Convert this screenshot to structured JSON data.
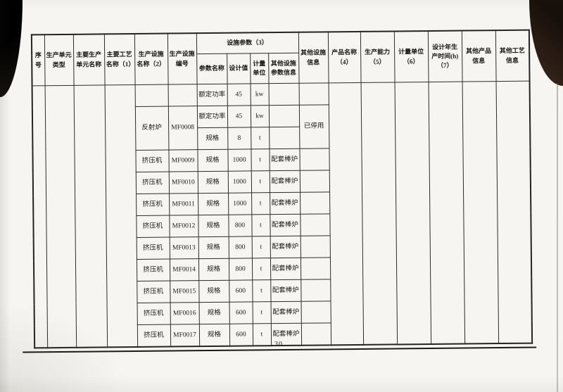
{
  "page": {
    "number": "30"
  },
  "table": {
    "headers": {
      "seq": "序号",
      "unit_type": "生产单元类型",
      "main_unit_name": "主要生产单元名称",
      "main_process_name": "主要工艺名称（1）",
      "facility_name": "生产设施名称（2）",
      "facility_code": "生产设施编号",
      "facility_params": "设施参数（3）",
      "param_name": "参数名称",
      "design_value": "设计值",
      "unit": "计量单位",
      "other_param_info": "其他设施参数信息",
      "other_facility_info": "其他设施信息",
      "product_name": "产品名称（4）",
      "capacity": "生产能力（5）",
      "capacity_unit": "计量单位（6）",
      "design_hours": "设计年生产时间(h)（7）",
      "other_product_info": "其他产品信息",
      "other_process_info": "其他工艺信息"
    },
    "groups": [
      {
        "facility_name": "",
        "facility_code": "",
        "info": "",
        "params": [
          {
            "name": "额定功率",
            "value": "45",
            "unit": "kw",
            "other": ""
          }
        ]
      },
      {
        "facility_name": "反射炉",
        "facility_code": "MF0008",
        "info": "已停用",
        "params": [
          {
            "name": "额定功率",
            "value": "45",
            "unit": "kw",
            "other": ""
          },
          {
            "name": "规格",
            "value": "8",
            "unit": "t",
            "other": ""
          }
        ]
      },
      {
        "facility_name": "挤压机",
        "facility_code": "MF0009",
        "info": "",
        "params": [
          {
            "name": "规格",
            "value": "1000",
            "unit": "t",
            "other": "配套棒炉"
          }
        ]
      },
      {
        "facility_name": "挤压机",
        "facility_code": "MF0010",
        "info": "",
        "params": [
          {
            "name": "规格",
            "value": "1000",
            "unit": "t",
            "other": "配套棒炉"
          }
        ]
      },
      {
        "facility_name": "挤压机",
        "facility_code": "MF0011",
        "info": "",
        "params": [
          {
            "name": "规格",
            "value": "1000",
            "unit": "t",
            "other": "配套棒炉"
          }
        ]
      },
      {
        "facility_name": "挤压机",
        "facility_code": "MF0012",
        "info": "",
        "params": [
          {
            "name": "规格",
            "value": "800",
            "unit": "t",
            "other": "配套棒炉"
          }
        ]
      },
      {
        "facility_name": "挤压机",
        "facility_code": "MF0013",
        "info": "",
        "params": [
          {
            "name": "规格",
            "value": "800",
            "unit": "t",
            "other": "配套棒炉"
          }
        ]
      },
      {
        "facility_name": "挤压机",
        "facility_code": "MF0014",
        "info": "",
        "params": [
          {
            "name": "规格",
            "value": "800",
            "unit": "t",
            "other": "配套棒炉"
          }
        ]
      },
      {
        "facility_name": "挤压机",
        "facility_code": "MF0015",
        "info": "",
        "params": [
          {
            "name": "规格",
            "value": "600",
            "unit": "t",
            "other": "配套棒炉"
          }
        ]
      },
      {
        "facility_name": "挤压机",
        "facility_code": "MF0016",
        "info": "",
        "params": [
          {
            "name": "规格",
            "value": "600",
            "unit": "t",
            "other": "配套棒炉"
          }
        ]
      },
      {
        "facility_name": "挤压机",
        "facility_code": "MF0017",
        "info": "",
        "params": [
          {
            "name": "规格",
            "value": "600",
            "unit": "t",
            "other": "配套棒炉"
          }
        ]
      }
    ]
  }
}
